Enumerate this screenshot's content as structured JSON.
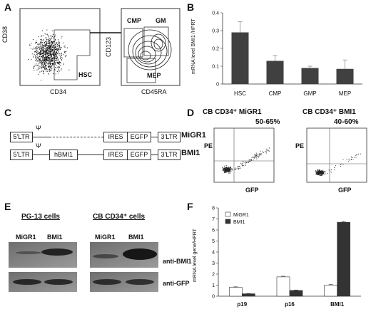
{
  "panels": {
    "a": "A",
    "b": "B",
    "c": "C",
    "d": "D",
    "e": "E",
    "f": "F"
  },
  "panel_a": {
    "plot1": {
      "ylabel": "CD38",
      "xlabel": "CD34",
      "gate": "HSC"
    },
    "plot2": {
      "ylabel": "CD123",
      "xlabel": "CD45RA",
      "gates": [
        "CMP",
        "GM",
        "MEP"
      ]
    }
  },
  "panel_c": {
    "constructs": [
      {
        "name": "MiGR1",
        "ltr5": "5'LTR",
        "psi": "Ψ",
        "insert": "",
        "ires": "IRES",
        "egfp": "EGFP",
        "ltr3": "3'LTR"
      },
      {
        "name": "BMI1",
        "ltr5": "5'LTR",
        "psi": "Ψ",
        "insert": "hBMI1",
        "ires": "IRES",
        "egfp": "EGFP",
        "ltr3": "3'LTR"
      }
    ]
  },
  "panel_d": {
    "plots": [
      {
        "title": "CB CD34⁺ MiGR1",
        "percent": "50-65%",
        "ylabel": "PE",
        "xlabel": "GFP"
      },
      {
        "title": "CB CD34⁺ BMI1",
        "percent": "40-60%",
        "ylabel": "PE",
        "xlabel": "GFP"
      }
    ]
  },
  "panel_e": {
    "groups": [
      {
        "title": "PG-13 cells",
        "lanes": [
          "MiGR1",
          "BMI1"
        ]
      },
      {
        "title": "CB CD34⁺ cells",
        "lanes": [
          "MiGR1",
          "BMI1"
        ]
      }
    ],
    "blots": [
      "anti-BMI1",
      "anti-GFP"
    ]
  },
  "chart_data": [
    {
      "type": "bar",
      "panel": "B",
      "categories": [
        "HSC",
        "CMP",
        "GMP",
        "MEP"
      ],
      "values": [
        0.29,
        0.13,
        0.09,
        0.085
      ],
      "errors": [
        0.06,
        0.03,
        0.01,
        0.05
      ],
      "ylabel": "mRNA level BMI1 /HPRT",
      "ylim": [
        0,
        0.4
      ],
      "yticks": [
        "0",
        "0.1",
        "0.2",
        "0.3",
        "0.4"
      ],
      "bar_color": "#404040"
    },
    {
      "type": "bar",
      "panel": "F",
      "categories": [
        "p19",
        "p16",
        "BMI1"
      ],
      "series": [
        {
          "name": "MiGR1",
          "values": [
            0.8,
            1.75,
            1.0
          ],
          "errors": [
            0.05,
            0.06,
            0.06
          ],
          "color": "#ffffff"
        },
        {
          "name": "BMI1",
          "values": [
            0.22,
            0.52,
            6.7
          ],
          "errors": [
            0.03,
            0.04,
            0.07
          ],
          "color": "#333333"
        }
      ],
      "ylabel": "mRNA level gene/HPRT",
      "ylim": [
        0,
        8
      ],
      "yticks": [
        "0",
        "1",
        "2",
        "3",
        "4",
        "5",
        "6",
        "7",
        "8"
      ],
      "legend": "top-left"
    }
  ]
}
